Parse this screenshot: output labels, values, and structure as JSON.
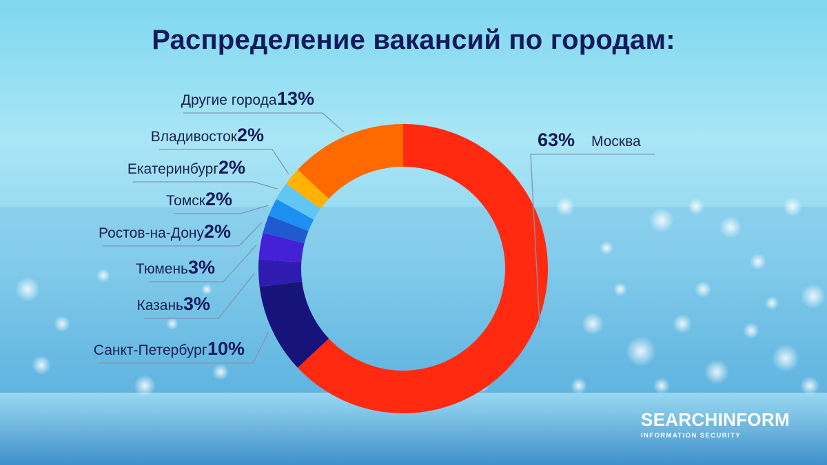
{
  "title": "Распределение вакансий по городам:",
  "logo": {
    "name": "SEARCHINFORM",
    "tagline": "INFORMATION SECURITY"
  },
  "colors": {
    "title": "#141a5c",
    "leader_line": "#7f97b0"
  },
  "chart_data": {
    "type": "pie",
    "donut": true,
    "slices": [
      {
        "label": "Москва",
        "value": 63,
        "value_label": "63%",
        "color": "#ff2a10"
      },
      {
        "label": "Санкт-Петербург",
        "value": 10,
        "value_label": "10%",
        "color": "#16137a"
      },
      {
        "label": "Казань",
        "value": 3,
        "value_label": "3%",
        "color": "#2f1bb0"
      },
      {
        "label": "Тюмень",
        "value": 3,
        "value_label": "3%",
        "color": "#4420d6"
      },
      {
        "label": "Ростов-на-Дону",
        "value": 2,
        "value_label": "2%",
        "color": "#1f5ad0"
      },
      {
        "label": "Томск",
        "value": 2,
        "value_label": "2%",
        "color": "#1e8ff2"
      },
      {
        "label": "Екатеринбург",
        "value": 2,
        "value_label": "2%",
        "color": "#62c6f3"
      },
      {
        "label": "Владивосток",
        "value": 2,
        "value_label": "2%",
        "color": "#ffb300"
      },
      {
        "label": "Другие города",
        "value": 13,
        "value_label": "13%",
        "color": "#ff6a00"
      }
    ]
  }
}
